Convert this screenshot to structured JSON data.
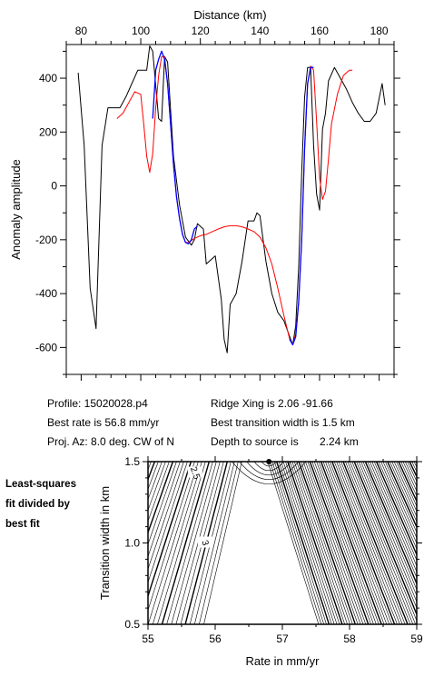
{
  "chart_data": [
    {
      "type": "line",
      "title": "",
      "xlabel": "Distance (km)",
      "ylabel": "Anomaly amplitude",
      "xlim": [
        75,
        185
      ],
      "ylim": [
        -700,
        525
      ],
      "x_ticks": [
        80,
        100,
        120,
        140,
        160,
        180
      ],
      "y_ticks": [
        -600,
        -400,
        -200,
        0,
        200,
        400
      ],
      "x_tick_labels": [
        "80",
        "100",
        "120",
        "140",
        "160",
        "180"
      ],
      "y_tick_labels": [
        "-600",
        "-400",
        "-200",
        "0",
        "200",
        "400"
      ],
      "series": [
        {
          "name": "",
          "color": "#000000",
          "x": [
            79,
            81,
            83,
            85,
            87,
            89,
            91,
            93,
            95,
            97,
            99,
            101,
            102,
            103,
            104,
            106,
            107,
            108,
            109,
            111,
            113,
            115,
            117,
            118,
            119,
            121,
            122,
            123,
            125,
            127,
            128,
            129,
            130,
            132,
            134,
            136,
            138,
            139,
            140,
            142,
            144,
            146,
            148,
            150,
            151,
            152,
            153,
            154,
            155,
            156,
            157,
            158,
            159,
            160,
            161,
            162,
            163,
            165,
            167,
            169,
            171,
            173,
            175,
            177,
            179,
            181,
            182
          ],
          "y": [
            420,
            150,
            -380,
            -530,
            150,
            290,
            290,
            290,
            330,
            380,
            430,
            430,
            430,
            520,
            500,
            250,
            240,
            480,
            460,
            110,
            -70,
            -190,
            -220,
            -200,
            -140,
            -160,
            -290,
            -280,
            -260,
            -420,
            -570,
            -620,
            -440,
            -400,
            -280,
            -130,
            -130,
            -100,
            -110,
            -280,
            -400,
            -470,
            -500,
            -560,
            -590,
            -520,
            -300,
            50,
            330,
            440,
            440,
            150,
            -30,
            -90,
            210,
            270,
            390,
            440,
            400,
            360,
            310,
            270,
            240,
            240,
            270,
            380,
            300
          ]
        },
        {
          "name": "",
          "color": "#ff0000",
          "x": [
            92,
            94,
            96,
            98,
            100,
            101,
            102,
            103,
            104,
            105,
            106,
            107,
            108,
            109,
            110,
            111,
            112,
            113,
            114,
            115,
            116,
            118,
            120,
            122,
            124,
            126,
            128,
            130,
            132,
            134,
            136,
            138,
            140,
            142,
            144,
            146,
            148,
            150,
            151,
            152,
            153,
            154,
            155,
            156,
            157,
            158,
            159,
            160,
            161,
            162,
            163,
            164,
            166,
            168,
            170,
            171
          ],
          "y": [
            250,
            270,
            310,
            350,
            340,
            230,
            110,
            50,
            120,
            290,
            410,
            480,
            480,
            380,
            230,
            80,
            -40,
            -120,
            -180,
            -210,
            -210,
            -195,
            -185,
            -180,
            -170,
            -160,
            -152,
            -148,
            -148,
            -152,
            -160,
            -170,
            -190,
            -230,
            -290,
            -380,
            -480,
            -570,
            -590,
            -550,
            -430,
            -200,
            140,
            380,
            445,
            430,
            240,
            30,
            -50,
            -20,
            100,
            230,
            340,
            410,
            430,
            430
          ]
        },
        {
          "name": "",
          "color": "#0000ff",
          "x": [
            104,
            105,
            106,
            107,
            108,
            109,
            110,
            111,
            112,
            113,
            114,
            115,
            116,
            117,
            118,
            119,
            150,
            151,
            152,
            153,
            154,
            155,
            156,
            157,
            158
          ],
          "y": [
            250,
            430,
            470,
            500,
            470,
            380,
            230,
            80,
            -40,
            -120,
            -180,
            -210,
            -215,
            -200,
            -160,
            -150,
            -570,
            -590,
            -560,
            -430,
            -200,
            140,
            380,
            440,
            440
          ]
        }
      ]
    },
    {
      "type": "contour",
      "title": "",
      "xlabel": "Rate in mm/yr",
      "ylabel": "Transition width in km",
      "xlim": [
        55,
        59
      ],
      "ylim": [
        0.5,
        1.5
      ],
      "x_ticks": [
        55,
        56,
        57,
        58,
        59
      ],
      "y_ticks": [
        0.5,
        1.0,
        1.5
      ],
      "x_tick_labels": [
        "55",
        "56",
        "57",
        "58",
        "59"
      ],
      "y_tick_labels": [
        "0.5",
        "1.0",
        "1.5"
      ],
      "best_fit_point": {
        "x": 56.8,
        "y": 1.5
      },
      "contour_labels": [
        {
          "text": "2.5",
          "x": 55.7,
          "y": 1.43
        },
        {
          "text": "3",
          "x": 55.85,
          "y": 1.0
        }
      ]
    }
  ],
  "info": {
    "profile": "Profile: 15020028.p4",
    "best_rate": "Best rate is 56.8 mm/yr",
    "proj_az": "Proj. Az: 8.0 deg. CW of N",
    "ridge_xing": "Ridge Xing is 2.06 -91.66",
    "best_transition": "Best transition width is 1.5 km",
    "depth_label": "Depth to source is",
    "depth_value": "2.24 km"
  },
  "side_note": [
    "Least-squares",
    "fit divided by",
    "best fit"
  ]
}
